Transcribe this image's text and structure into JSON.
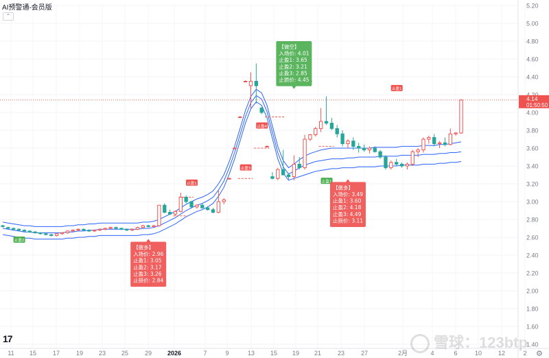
{
  "app": {
    "title": "AI预警通-会员版",
    "watermark": "雪球：123btp"
  },
  "colors": {
    "up": "#ef5350",
    "down": "#26a69a",
    "band": "#2962ff",
    "entry_line": "#ef5350",
    "price_line": "#ef5350",
    "box_short": "#4caf50",
    "box_long": "#ef5350",
    "axis_text": "#787b86"
  },
  "chart_data": {
    "type": "candlestick",
    "yaxis_ticks": [
      "5.20",
      "5.00",
      "4.80",
      "4.60",
      "4.40",
      "4.20",
      "4.00",
      "3.80",
      "3.60",
      "3.40",
      "3.20",
      "3.00",
      "2.80",
      "2.60",
      "2.40",
      "2.20",
      "2.00",
      "1.80",
      "1.60",
      "1.40"
    ],
    "ylim": [
      1.35,
      5.22
    ],
    "xaxis_ticks": [
      "11",
      "15",
      "17",
      "19",
      "23",
      "25",
      "29",
      "2026",
      "7",
      "9",
      "13",
      "15",
      "19",
      "21",
      "23",
      "27",
      "2月",
      "4",
      "6",
      "10",
      "12",
      "2"
    ],
    "last_price": "4.14",
    "last_time": "01:50:50",
    "candles": [
      [
        2.73,
        2.74,
        2.71,
        2.72
      ],
      [
        2.71,
        2.72,
        2.69,
        2.7
      ],
      [
        2.7,
        2.71,
        2.68,
        2.69
      ],
      [
        2.69,
        2.7,
        2.67,
        2.68
      ],
      [
        2.68,
        2.69,
        2.66,
        2.67
      ],
      [
        2.67,
        2.68,
        2.65,
        2.66
      ],
      [
        2.66,
        2.67,
        2.64,
        2.65
      ],
      [
        2.65,
        2.66,
        2.63,
        2.64
      ],
      [
        2.64,
        2.65,
        2.62,
        2.63
      ],
      [
        2.63,
        2.64,
        2.61,
        2.62
      ],
      [
        2.62,
        2.65,
        2.61,
        2.64
      ],
      [
        2.64,
        2.66,
        2.63,
        2.65
      ],
      [
        2.65,
        2.68,
        2.64,
        2.67
      ],
      [
        2.67,
        2.69,
        2.66,
        2.68
      ],
      [
        2.68,
        2.7,
        2.67,
        2.69
      ],
      [
        2.69,
        2.7,
        2.67,
        2.68
      ],
      [
        2.68,
        2.69,
        2.66,
        2.67
      ],
      [
        2.67,
        2.69,
        2.66,
        2.68
      ],
      [
        2.68,
        2.7,
        2.67,
        2.69
      ],
      [
        2.69,
        2.71,
        2.68,
        2.7
      ],
      [
        2.7,
        2.72,
        2.69,
        2.71
      ],
      [
        2.71,
        2.72,
        2.69,
        2.7
      ],
      [
        2.7,
        2.71,
        2.68,
        2.69
      ],
      [
        2.69,
        2.7,
        2.67,
        2.68
      ],
      [
        2.68,
        2.7,
        2.67,
        2.69
      ],
      [
        2.69,
        2.72,
        2.68,
        2.71
      ],
      [
        2.71,
        2.74,
        2.7,
        2.73
      ],
      [
        2.73,
        2.74,
        2.71,
        2.72
      ],
      [
        2.72,
        2.74,
        2.71,
        2.73
      ],
      [
        2.73,
        2.96,
        2.72,
        2.96
      ],
      [
        2.96,
        2.98,
        2.87,
        2.88
      ],
      [
        2.88,
        2.91,
        2.85,
        2.86
      ],
      [
        2.86,
        2.9,
        2.84,
        2.89
      ],
      [
        2.89,
        3.1,
        2.88,
        3.05
      ],
      [
        3.05,
        3.07,
        2.98,
        3.0
      ],
      [
        3.0,
        3.01,
        2.93,
        2.94
      ],
      [
        2.94,
        2.97,
        2.92,
        2.96
      ],
      [
        2.96,
        2.98,
        2.92,
        2.93
      ],
      [
        2.93,
        2.95,
        2.9,
        2.91
      ],
      [
        2.91,
        2.93,
        2.87,
        2.88
      ],
      [
        2.88,
        3.13,
        2.87,
        3.0
      ],
      [
        3.0,
        3.04,
        2.97,
        3.02
      ],
      [
        3.26,
        3.27,
        3.25,
        3.26
      ],
      [
        3.6,
        3.61,
        3.59,
        3.6
      ],
      [
        3.95,
        3.96,
        3.94,
        3.95
      ],
      [
        4.35,
        4.36,
        4.34,
        4.35
      ],
      [
        4.3,
        4.45,
        4.05,
        4.35
      ],
      [
        4.35,
        4.55,
        4.1,
        4.3
      ],
      [
        4.05,
        4.06,
        3.98,
        4.0
      ],
      [
        3.62,
        3.63,
        3.61,
        3.62
      ],
      [
        3.28,
        3.33,
        3.25,
        3.26
      ],
      [
        3.26,
        3.38,
        3.24,
        3.36
      ],
      [
        3.36,
        3.58,
        3.3,
        3.3
      ],
      [
        3.3,
        3.32,
        3.25,
        3.28
      ],
      [
        3.28,
        3.52,
        3.24,
        3.42
      ],
      [
        3.42,
        3.5,
        3.36,
        3.38
      ],
      [
        3.38,
        3.75,
        3.36,
        3.7
      ],
      [
        3.7,
        3.76,
        3.68,
        3.75
      ],
      [
        3.75,
        3.84,
        3.73,
        3.82
      ],
      [
        3.82,
        4.05,
        3.78,
        3.9
      ],
      [
        3.9,
        4.18,
        3.86,
        3.88
      ],
      [
        3.88,
        3.94,
        3.8,
        3.82
      ],
      [
        3.82,
        3.86,
        3.72,
        3.76
      ],
      [
        3.76,
        3.8,
        3.62,
        3.65
      ],
      [
        3.65,
        3.7,
        3.6,
        3.68
      ],
      [
        3.68,
        3.72,
        3.58,
        3.62
      ],
      [
        3.62,
        3.66,
        3.55,
        3.6
      ],
      [
        3.6,
        3.64,
        3.56,
        3.58
      ],
      [
        3.58,
        3.62,
        3.54,
        3.6
      ],
      [
        3.6,
        3.62,
        3.55,
        3.56
      ],
      [
        3.56,
        3.58,
        3.48,
        3.5
      ],
      [
        3.5,
        3.52,
        3.36,
        3.38
      ],
      [
        3.38,
        3.46,
        3.36,
        3.44
      ],
      [
        3.44,
        3.48,
        3.4,
        3.42
      ],
      [
        3.42,
        3.44,
        3.38,
        3.4
      ],
      [
        3.4,
        3.44,
        3.36,
        3.42
      ],
      [
        3.42,
        3.58,
        3.4,
        3.56
      ],
      [
        3.56,
        3.6,
        3.5,
        3.58
      ],
      [
        3.58,
        3.72,
        3.55,
        3.7
      ],
      [
        3.7,
        3.74,
        3.65,
        3.72
      ],
      [
        3.72,
        3.76,
        3.62,
        3.65
      ],
      [
        3.65,
        3.68,
        3.6,
        3.66
      ],
      [
        3.66,
        3.72,
        3.62,
        3.64
      ],
      [
        3.64,
        3.82,
        3.63,
        3.76
      ],
      [
        3.76,
        3.78,
        3.74,
        3.77
      ],
      [
        3.77,
        4.15,
        3.76,
        4.14
      ]
    ],
    "band": {
      "upper": [
        2.77,
        2.76,
        2.75,
        2.74,
        2.73,
        2.73,
        2.72,
        2.72,
        2.72,
        2.72,
        2.72,
        2.72,
        2.73,
        2.73,
        2.74,
        2.74,
        2.75,
        2.75,
        2.76,
        2.76,
        2.76,
        2.76,
        2.76,
        2.76,
        2.76,
        2.76,
        2.77,
        2.77,
        2.78,
        2.8,
        2.83,
        2.86,
        2.89,
        2.93,
        2.97,
        3.0,
        3.03,
        3.05,
        3.08,
        3.12,
        3.2,
        3.3,
        3.45,
        3.62,
        3.82,
        4.02,
        4.18,
        4.26,
        4.22,
        4.08,
        3.85,
        3.62,
        3.46,
        3.38,
        3.42,
        3.47,
        3.51,
        3.54,
        3.56,
        3.58,
        3.59,
        3.6,
        3.6,
        3.6,
        3.6,
        3.6,
        3.6,
        3.6,
        3.6,
        3.61,
        3.61,
        3.61,
        3.61,
        3.61,
        3.62,
        3.62,
        3.62,
        3.62,
        3.63,
        3.63,
        3.63,
        3.64,
        3.64,
        3.65,
        3.66,
        3.67
      ],
      "middle": [
        2.7,
        2.69,
        2.68,
        2.67,
        2.66,
        2.66,
        2.65,
        2.65,
        2.65,
        2.65,
        2.65,
        2.65,
        2.66,
        2.66,
        2.67,
        2.67,
        2.68,
        2.68,
        2.69,
        2.69,
        2.69,
        2.69,
        2.69,
        2.69,
        2.69,
        2.69,
        2.7,
        2.7,
        2.71,
        2.73,
        2.76,
        2.79,
        2.82,
        2.86,
        2.9,
        2.93,
        2.96,
        2.98,
        3.01,
        3.05,
        3.13,
        3.23,
        3.38,
        3.55,
        3.75,
        3.95,
        4.11,
        4.19,
        4.15,
        4.01,
        3.78,
        3.55,
        3.39,
        3.31,
        3.34,
        3.38,
        3.41,
        3.43,
        3.45,
        3.46,
        3.47,
        3.48,
        3.48,
        3.48,
        3.49,
        3.49,
        3.5,
        3.5,
        3.5,
        3.5,
        3.51,
        3.51,
        3.51,
        3.51,
        3.52,
        3.52,
        3.52,
        3.52,
        3.53,
        3.53,
        3.53,
        3.54,
        3.54,
        3.55,
        3.55,
        3.56
      ],
      "lower": [
        2.63,
        2.62,
        2.61,
        2.6,
        2.59,
        2.59,
        2.58,
        2.58,
        2.58,
        2.58,
        2.58,
        2.58,
        2.59,
        2.59,
        2.6,
        2.6,
        2.61,
        2.61,
        2.62,
        2.62,
        2.62,
        2.62,
        2.62,
        2.62,
        2.62,
        2.62,
        2.63,
        2.63,
        2.64,
        2.66,
        2.69,
        2.72,
        2.75,
        2.79,
        2.83,
        2.86,
        2.89,
        2.91,
        2.94,
        2.98,
        3.06,
        3.16,
        3.31,
        3.48,
        3.68,
        3.88,
        4.04,
        4.12,
        4.08,
        3.94,
        3.71,
        3.48,
        3.32,
        3.24,
        3.26,
        3.28,
        3.3,
        3.32,
        3.34,
        3.35,
        3.36,
        3.37,
        3.37,
        3.38,
        3.38,
        3.38,
        3.39,
        3.39,
        3.39,
        3.39,
        3.4,
        3.4,
        3.4,
        3.4,
        3.41,
        3.41,
        3.41,
        3.41,
        3.42,
        3.42,
        3.42,
        3.43,
        3.43,
        3.44,
        3.44,
        3.45
      ]
    },
    "markers": [
      {
        "i": 3,
        "price": 2.57,
        "label": "止盈2",
        "kind": "short"
      },
      {
        "i": 35,
        "price": 3.21,
        "label": "止盈1",
        "kind": "long"
      },
      {
        "i": 45,
        "price": 3.38,
        "label": "止盈3",
        "kind": "long"
      },
      {
        "i": 48,
        "price": 3.85,
        "label": "止盈4",
        "kind": "long"
      },
      {
        "i": 60,
        "price": 3.23,
        "label": "止盈1",
        "kind": "short"
      },
      {
        "i": 73,
        "price": 4.27,
        "label": "止盈1",
        "kind": "long"
      }
    ],
    "dash_levels": [
      {
        "i0": 32,
        "i1": 34,
        "price": 2.84
      },
      {
        "i0": 33,
        "i1": 35,
        "price": 3.05
      },
      {
        "i0": 44,
        "i1": 46,
        "price": 3.26
      },
      {
        "i0": 47,
        "i1": 49,
        "price": 3.6
      },
      {
        "i0": 49,
        "i1": 52,
        "price": 3.95
      },
      {
        "i0": 53,
        "i1": 57,
        "price": 4.35
      },
      {
        "i0": 59,
        "i1": 61,
        "price": 3.62
      }
    ],
    "signal_boxes": [
      {
        "i": 54,
        "price_top": 4.8,
        "kind": "short",
        "lines": [
          "【做空】",
          "入场价: 4.01",
          "止盈1: 3.65",
          "止盈2: 3.21",
          "止盈3: 2.85",
          "止损价: 4.45"
        ]
      },
      {
        "i": 27,
        "price_top": 2.55,
        "kind": "long",
        "lines": [
          "【做多】",
          "入场价: 2.96",
          "止盈1: 3.05",
          "止盈2: 3.17",
          "止盈3: 3.26",
          "止损价: 2.84"
        ]
      },
      {
        "i": 64,
        "price_top": 3.22,
        "kind": "long",
        "lines": [
          "【做多】",
          "入场价: 3.49",
          "止盈1: 3.60",
          "止盈2: 4.18",
          "止盈3: 4.49",
          "止损价: 3.11"
        ]
      }
    ]
  }
}
